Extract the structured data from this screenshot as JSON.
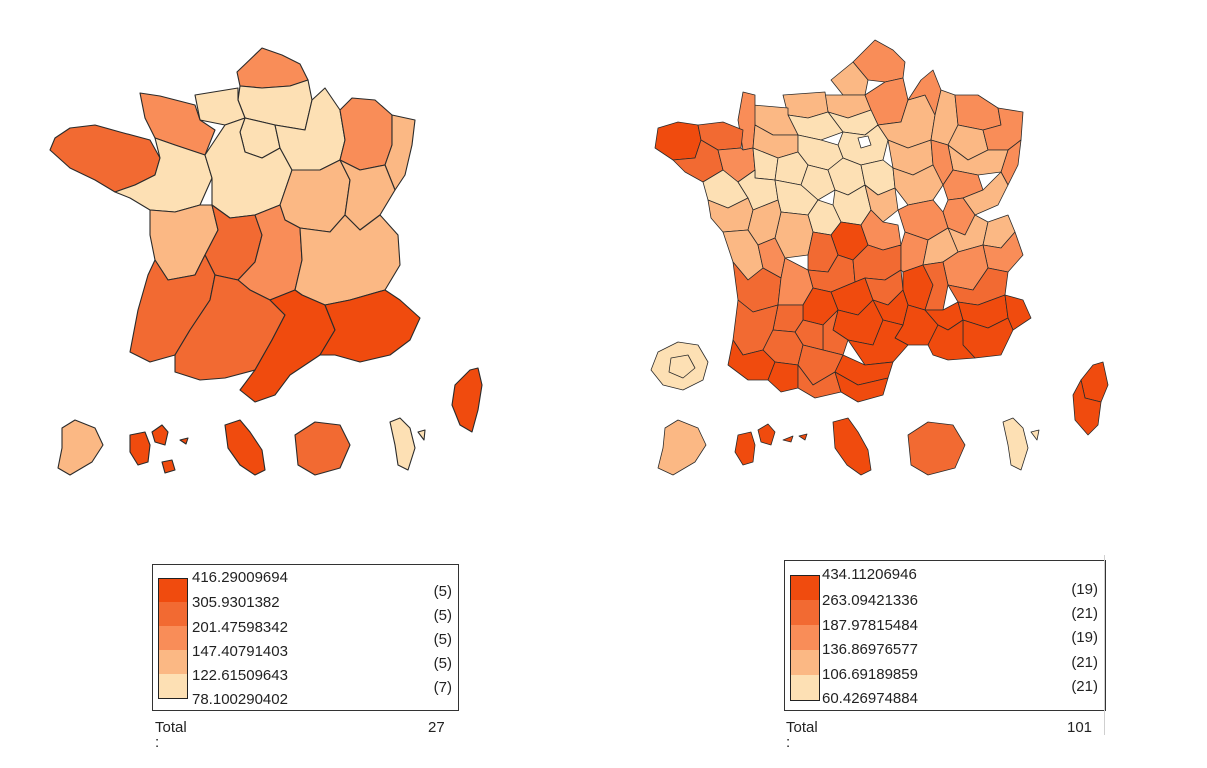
{
  "colors": {
    "class1": "#fde0b4",
    "class2": "#fbb884",
    "class3": "#f98d58",
    "class4": "#f26a32",
    "class5": "#f04b0e",
    "outline": "#2b2b2b"
  },
  "left_map": {
    "legend": {
      "values": [
        "416.29009694",
        "305.9301382",
        "201.47598342",
        "147.40791403",
        "122.61509643",
        "78.100290402"
      ],
      "counts": [
        "(5)",
        "(5)",
        "(5)",
        "(5)",
        "(7)"
      ],
      "total_label": "Total :",
      "total_value": "27"
    }
  },
  "right_map": {
    "legend": {
      "values": [
        "434.11206946",
        "263.09421336",
        "187.97815484",
        "136.86976577",
        "106.69189859",
        "60.426974884"
      ],
      "counts": [
        "(19)",
        "(21)",
        "(19)",
        "(21)",
        "(21)"
      ],
      "total_label": "Total :",
      "total_value": "101"
    }
  }
}
